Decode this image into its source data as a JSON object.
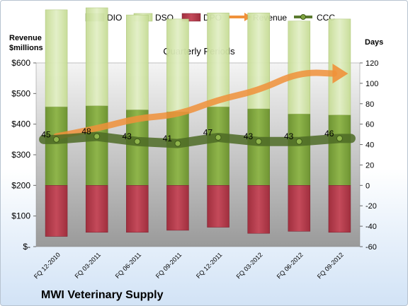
{
  "company": "MWI Veterinary Supply",
  "chart_data": {
    "type": "bar",
    "title": "Quarterly Periods",
    "left_axis_label_line1": "Revenue",
    "left_axis_label_line2": "$millions",
    "right_axis_label": "Days",
    "categories": [
      "FQ 12-2010",
      "FQ 03-2011",
      "FQ 06-2011",
      "FQ 09-2011",
      "FQ 12-2011",
      "FQ 03-2012",
      "FQ 06-2012",
      "FQ 09-2012"
    ],
    "left_ylim": [
      0,
      600
    ],
    "left_ticks": [
      "$-",
      "$100",
      "$200",
      "$300",
      "$400",
      "$500",
      "$600"
    ],
    "right_ylim": [
      -60,
      120
    ],
    "right_ticks": [
      "-60",
      "-40",
      "-20",
      "0",
      "20",
      "40",
      "60",
      "80",
      "100",
      "120"
    ],
    "legend_position": "top",
    "series": [
      {
        "name": "DIO",
        "kind": "stacked-bar",
        "color": "#7fa33f",
        "values": [
          77,
          78,
          74,
          72,
          77,
          75,
          70,
          69
        ]
      },
      {
        "name": "DSO",
        "kind": "stacked-bar",
        "color": "#d3e6a7",
        "values": [
          95,
          96,
          93,
          91,
          92,
          94,
          91,
          94
        ]
      },
      {
        "name": "DPO",
        "kind": "stacked-bar-negative",
        "color": "#b5394a",
        "values": [
          -50,
          -46,
          -46,
          -44,
          -41,
          -47,
          -45,
          -46
        ]
      },
      {
        "name": "Revenue",
        "kind": "arrow",
        "color": "#f0913a",
        "values": [
          360,
          385,
          420,
          430,
          480,
          510,
          570,
          565
        ]
      },
      {
        "name": "CCC",
        "kind": "line",
        "color": "#5a7a2e",
        "values": [
          45,
          48,
          43,
          41,
          47,
          43,
          43,
          46
        ]
      }
    ],
    "ccc_labels": [
      "45",
      "48",
      "43",
      "41",
      "47",
      "43",
      "43",
      "46"
    ]
  }
}
